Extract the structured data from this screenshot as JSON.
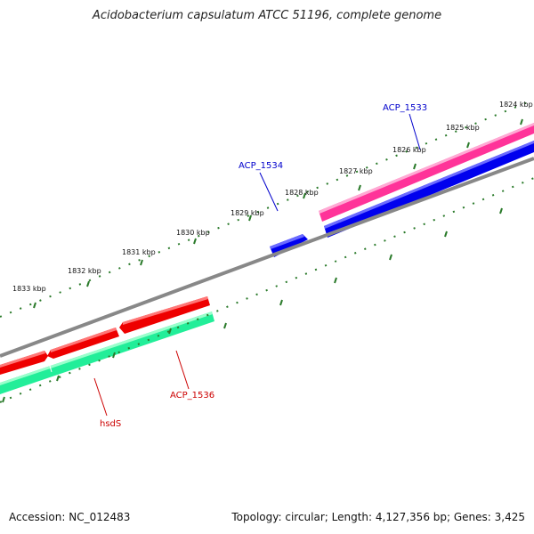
{
  "title": "Acidobacterium capsulatum ATCC 51196, complete genome",
  "footer": {
    "accession": "Accession: NC_012483",
    "topology": "Topology: circular; Length: 4,127,356 bp; Genes: 3,425"
  },
  "ticks": [
    {
      "label": "1824 kbp"
    },
    {
      "label": "1825 kbp"
    },
    {
      "label": "1826 kbp"
    },
    {
      "label": "1827 kbp"
    },
    {
      "label": "1828 kbp"
    },
    {
      "label": "1829 kbp"
    },
    {
      "label": "1830 kbp"
    },
    {
      "label": "1831 kbp"
    },
    {
      "label": "1832 kbp"
    },
    {
      "label": "1833 kbp"
    }
  ],
  "gene_labels": [
    {
      "text": "ACP_1533",
      "color": "#0000cc"
    },
    {
      "text": "ACP_1534",
      "color": "#0000cc"
    },
    {
      "text": "ACP_1536",
      "color": "#cc0000"
    },
    {
      "text": "hsdS",
      "color": "#cc0000"
    }
  ],
  "colors": {
    "forward_cds_upper": "#ff3399",
    "forward_cds_lower": "#0000ee",
    "reverse_cds_upper": "#ee0000",
    "reverse_cds_lower": "#22ee99",
    "backbone": "#888888",
    "ticks": "#2a7a2a"
  }
}
